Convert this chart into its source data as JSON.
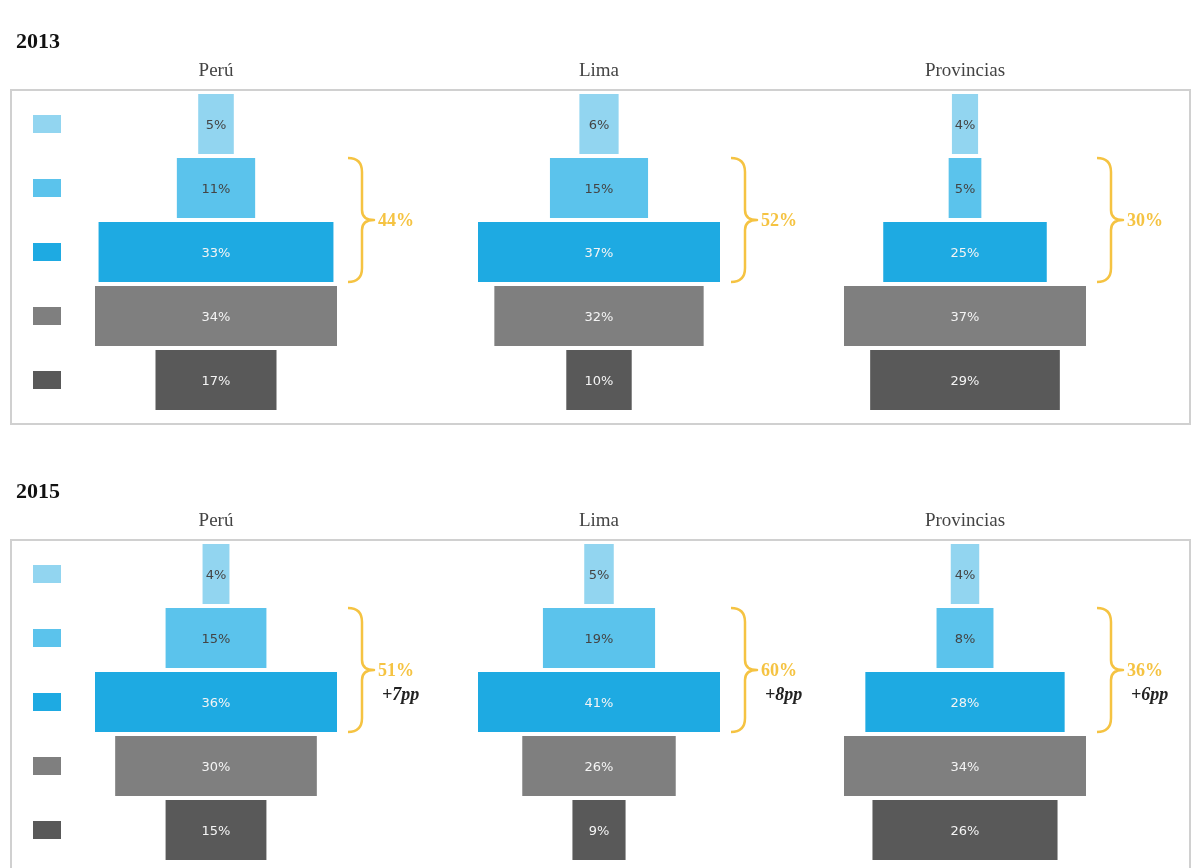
{
  "chart_data": [
    {
      "type": "other",
      "subtitle": "2013",
      "title": "Perú",
      "categories": [
        null,
        null,
        null,
        null,
        null
      ],
      "values": [
        5,
        11,
        33,
        34,
        17
      ],
      "value_labels": [
        "5%",
        "11%",
        "33%",
        "34%",
        "17%"
      ],
      "colors": [
        "#92d5f0",
        "#5bc3ec",
        "#1eaae2",
        "#7f7f7f",
        "#595959"
      ],
      "annotations": [
        "44%"
      ]
    },
    {
      "type": "other",
      "title": "Lima",
      "categories": [
        null,
        null,
        null,
        null,
        null
      ],
      "values": [
        6,
        15,
        37,
        32,
        10
      ],
      "value_labels": [
        "6%",
        "15%",
        "37%",
        "32%",
        "10%"
      ],
      "colors": [
        "#92d5f0",
        "#5bc3ec",
        "#1eaae2",
        "#7f7f7f",
        "#595959"
      ],
      "annotations": [
        "52%"
      ]
    },
    {
      "type": "other",
      "title": "Provincias",
      "categories": [
        null,
        null,
        null,
        null,
        null
      ],
      "values": [
        4,
        5,
        25,
        37,
        29
      ],
      "value_labels": [
        "4%",
        "5%",
        "25%",
        "37%",
        "29%"
      ],
      "colors": [
        "#92d5f0",
        "#5bc3ec",
        "#1eaae2",
        "#7f7f7f",
        "#595959"
      ],
      "annotations": [
        "30%"
      ]
    },
    {
      "type": "other",
      "subtitle": "2015",
      "title": "Perú",
      "categories": [
        null,
        null,
        null,
        null,
        null
      ],
      "values": [
        4,
        15,
        36,
        30,
        15
      ],
      "value_labels": [
        "4%",
        "15%",
        "36%",
        "30%",
        "15%"
      ],
      "colors": [
        "#92d5f0",
        "#5bc3ec",
        "#1eaae2",
        "#7f7f7f",
        "#595959"
      ],
      "annotations": [
        "51%",
        "+7pp"
      ]
    },
    {
      "type": "other",
      "title": "Lima",
      "categories": [
        null,
        null,
        null,
        null,
        null
      ],
      "values": [
        5,
        19,
        41,
        26,
        9
      ],
      "value_labels": [
        "5%",
        "19%",
        "41%",
        "26%",
        "9%"
      ],
      "colors": [
        "#92d5f0",
        "#5bc3ec",
        "#1eaae2",
        "#7f7f7f",
        "#595959"
      ],
      "annotations": [
        "60%",
        "+8pp"
      ]
    },
    {
      "type": "other",
      "title": "Provincias",
      "categories": [
        null,
        null,
        null,
        null,
        null
      ],
      "values": [
        4,
        8,
        28,
        34,
        26
      ],
      "value_labels": [
        "4%",
        "8%",
        "28%",
        "34%",
        "26%"
      ],
      "colors": [
        "#92d5f0",
        "#5bc3ec",
        "#1eaae2",
        "#7f7f7f",
        "#595959"
      ],
      "annotations": [
        "36%",
        "+6pp"
      ]
    }
  ]
}
